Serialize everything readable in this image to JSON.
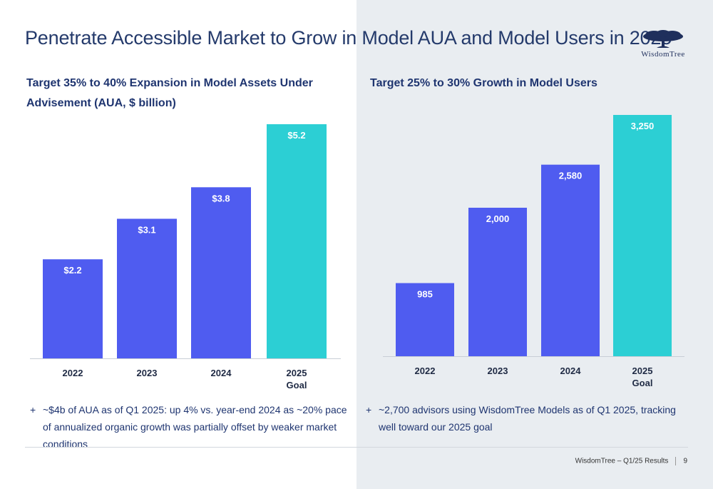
{
  "title": "Penetrate Accessible Market to Grow in Model AUA and Model Users in 2025",
  "logo": {
    "text": "WisdomTree"
  },
  "colors": {
    "bar": "#4f5cf0",
    "goal": "#2ccfd4",
    "title": "#243a6b"
  },
  "charts": {
    "left": {
      "title": "Target 35% to 40% Expansion in Model Assets Under Advisement (AUA, $ billion)",
      "bullet": "~$4b of AUA as of Q1 2025: up 4% vs. year-end 2024 as ~20% pace of annualized organic growth was partially offset by weaker market conditions"
    },
    "right": {
      "title": "Target 25% to 30% Growth in Model Users",
      "bullet": "~2,700 advisors using WisdomTree Models as of Q1 2025, tracking well toward our 2025 goal"
    }
  },
  "chart_data": [
    {
      "type": "bar",
      "title": "Target 35% to 40% Expansion in Model Assets Under Advisement (AUA, $ billion)",
      "categories": [
        "2022",
        "2023",
        "2024",
        "2025 Goal"
      ],
      "values": [
        2.2,
        3.1,
        3.8,
        5.2
      ],
      "labels": [
        "$2.2",
        "$3.1",
        "$3.8",
        "$5.2"
      ],
      "highlight_index": 3,
      "ylim": [
        0,
        5.2
      ]
    },
    {
      "type": "bar",
      "title": "Target 25% to 30% Growth in Model Users",
      "categories": [
        "2022",
        "2023",
        "2024",
        "2025 Goal"
      ],
      "values": [
        985,
        2000,
        2580,
        3250
      ],
      "labels": [
        "985",
        "2,000",
        "2,580",
        "3,250"
      ],
      "highlight_index": 3,
      "ylim": [
        0,
        3250
      ]
    }
  ],
  "footer": {
    "text": "WisdomTree – Q1/25 Results",
    "page": "9"
  }
}
